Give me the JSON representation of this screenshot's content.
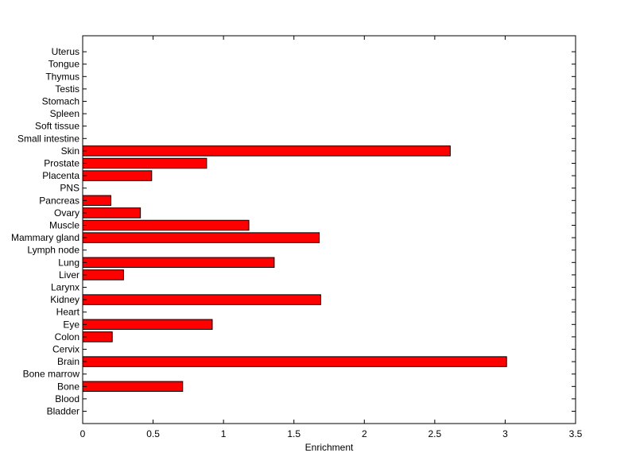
{
  "chart_data": {
    "type": "bar",
    "orientation": "horizontal",
    "categories": [
      "Bladder",
      "Blood",
      "Bone",
      "Bone marrow",
      "Brain",
      "Cervix",
      "Colon",
      "Eye",
      "Heart",
      "Kidney",
      "Larynx",
      "Liver",
      "Lung",
      "Lymph node",
      "Mammary gland",
      "Muscle",
      "Ovary",
      "Pancreas",
      "PNS",
      "Placenta",
      "Prostate",
      "Skin",
      "Small intestine",
      "Soft tissue",
      "Spleen",
      "Stomach",
      "Testis",
      "Thymus",
      "Tongue",
      "Uterus"
    ],
    "values": [
      0,
      0,
      0.71,
      0,
      3.01,
      0,
      0.21,
      0.92,
      0,
      1.69,
      0,
      0.29,
      1.36,
      0,
      1.68,
      1.18,
      0.41,
      0.2,
      0,
      0.49,
      0.88,
      2.61,
      0,
      0,
      0,
      0,
      0,
      0,
      0,
      0
    ],
    "xlabel": "Enrichment",
    "ylabel": "",
    "title": "",
    "xlim": [
      0,
      3.5
    ],
    "xticks": [
      0,
      0.5,
      1,
      1.5,
      2,
      2.5,
      3,
      3.5
    ],
    "xtick_labels": [
      "0",
      "0.5",
      "1",
      "1.5",
      "2",
      "2.5",
      "3",
      "3.5"
    ],
    "bar_color": "#ff0000",
    "grid": false
  }
}
